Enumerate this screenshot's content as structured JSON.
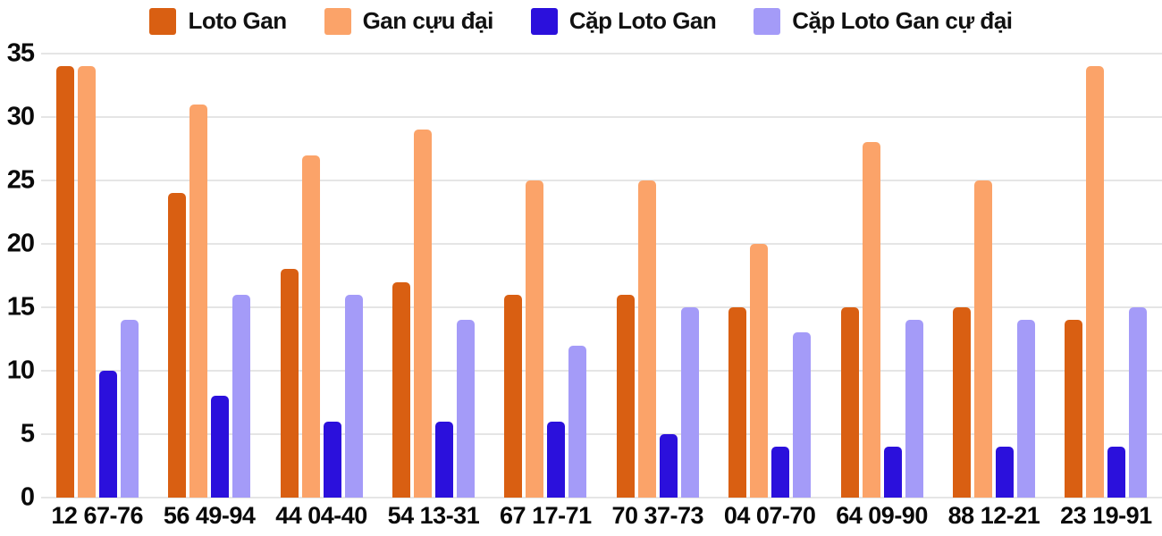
{
  "colors": {
    "grid": "#e5e5e5",
    "text": "#0a0a0a",
    "background": "#ffffff"
  },
  "legend": {
    "position": "top",
    "items": [
      {
        "label": "Loto Gan",
        "color": "#d95f12"
      },
      {
        "label": "Gan cựu đại",
        "color": "#fba369"
      },
      {
        "label": "Cặp Loto Gan",
        "color": "#2b10dc"
      },
      {
        "label": "Cặp Loto Gan cự đại",
        "color": "#a49bf8"
      }
    ]
  },
  "chart_data": {
    "type": "bar",
    "title": "",
    "xlabel": "",
    "ylabel": "",
    "categories": [
      "12 67-76",
      "56 49-94",
      "44 04-40",
      "54 13-31",
      "67 17-71",
      "70 37-73",
      "04 07-70",
      "64 09-90",
      "88 12-21",
      "23 19-91"
    ],
    "series": [
      {
        "name": "Loto Gan",
        "color": "#d95f12",
        "values": [
          34,
          24,
          18,
          17,
          16,
          16,
          15,
          15,
          15,
          14
        ]
      },
      {
        "name": "Gan cựu đại",
        "color": "#fba369",
        "values": [
          34,
          31,
          27,
          29,
          25,
          25,
          20,
          28,
          25,
          34
        ]
      },
      {
        "name": "Cặp Loto Gan",
        "color": "#2b10dc",
        "values": [
          10,
          8,
          6,
          6,
          6,
          5,
          4,
          4,
          4,
          4
        ]
      },
      {
        "name": "Cặp Loto Gan cự đại",
        "color": "#a49bf8",
        "values": [
          14,
          16,
          16,
          14,
          12,
          15,
          13,
          14,
          14,
          15
        ]
      }
    ],
    "ylim": [
      0,
      35
    ],
    "yticks": [
      0,
      5,
      10,
      15,
      20,
      25,
      30,
      35
    ],
    "grid": true,
    "legend_position": "top"
  }
}
